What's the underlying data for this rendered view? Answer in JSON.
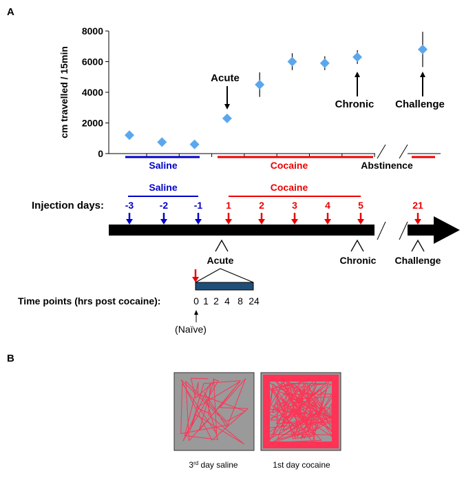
{
  "panel_a_label": "A",
  "panel_b_label": "B",
  "colors": {
    "saline": "#0000cc",
    "cocaine": "#ee0000",
    "marker": "#5aa7ee",
    "black": "#000000",
    "bar": "#1f4e79"
  },
  "chart_data": {
    "type": "scatter",
    "ylabel": "cm travelled / 15min",
    "ylim": [
      0,
      8000
    ],
    "yticks": [
      "0",
      "2000",
      "4000",
      "6000",
      "8000"
    ],
    "points": [
      {
        "slot": 1,
        "group": "Saline",
        "y": 1200,
        "err": 0
      },
      {
        "slot": 2,
        "group": "Saline",
        "y": 750,
        "err": 0
      },
      {
        "slot": 3,
        "group": "Saline",
        "y": 600,
        "err": 0
      },
      {
        "slot": 4,
        "group": "Cocaine",
        "y": 2300,
        "err": 0
      },
      {
        "slot": 5,
        "group": "Cocaine",
        "y": 4500,
        "err": 800
      },
      {
        "slot": 6,
        "group": "Cocaine",
        "y": 6000,
        "err": 550
      },
      {
        "slot": 7,
        "group": "Cocaine",
        "y": 5900,
        "err": 450
      },
      {
        "slot": 8,
        "group": "Cocaine",
        "y": 6300,
        "err": 450
      },
      {
        "slot": 10,
        "group": "Challenge",
        "y": 6800,
        "err": 1150
      }
    ],
    "annotations": [
      "Acute",
      "Chronic",
      "Challenge"
    ],
    "group_labels": [
      "Saline",
      "Cocaine",
      "Abstinence"
    ]
  },
  "timeline": {
    "saline_label": "Saline",
    "cocaine_label": "Cocaine",
    "injection_days_label": "Injection days:",
    "saline_days": [
      "-3",
      "-2",
      "-1"
    ],
    "cocaine_days": [
      "1",
      "2",
      "3",
      "4",
      "5"
    ],
    "challenge_day": "21",
    "acute_label": "Acute",
    "chronic_label": "Chronic",
    "challenge_label": "Challenge",
    "time_points_label": "Time points (hrs post cocaine):",
    "time_points": [
      "0",
      "1",
      "2",
      "4",
      "8",
      "24"
    ],
    "naive_label": "(Naïve)"
  },
  "panel_b": {
    "caption_left_main": "3",
    "caption_left_sup": "rd",
    "caption_left_rest": " day saline",
    "caption_right": "1st day cocaine"
  }
}
